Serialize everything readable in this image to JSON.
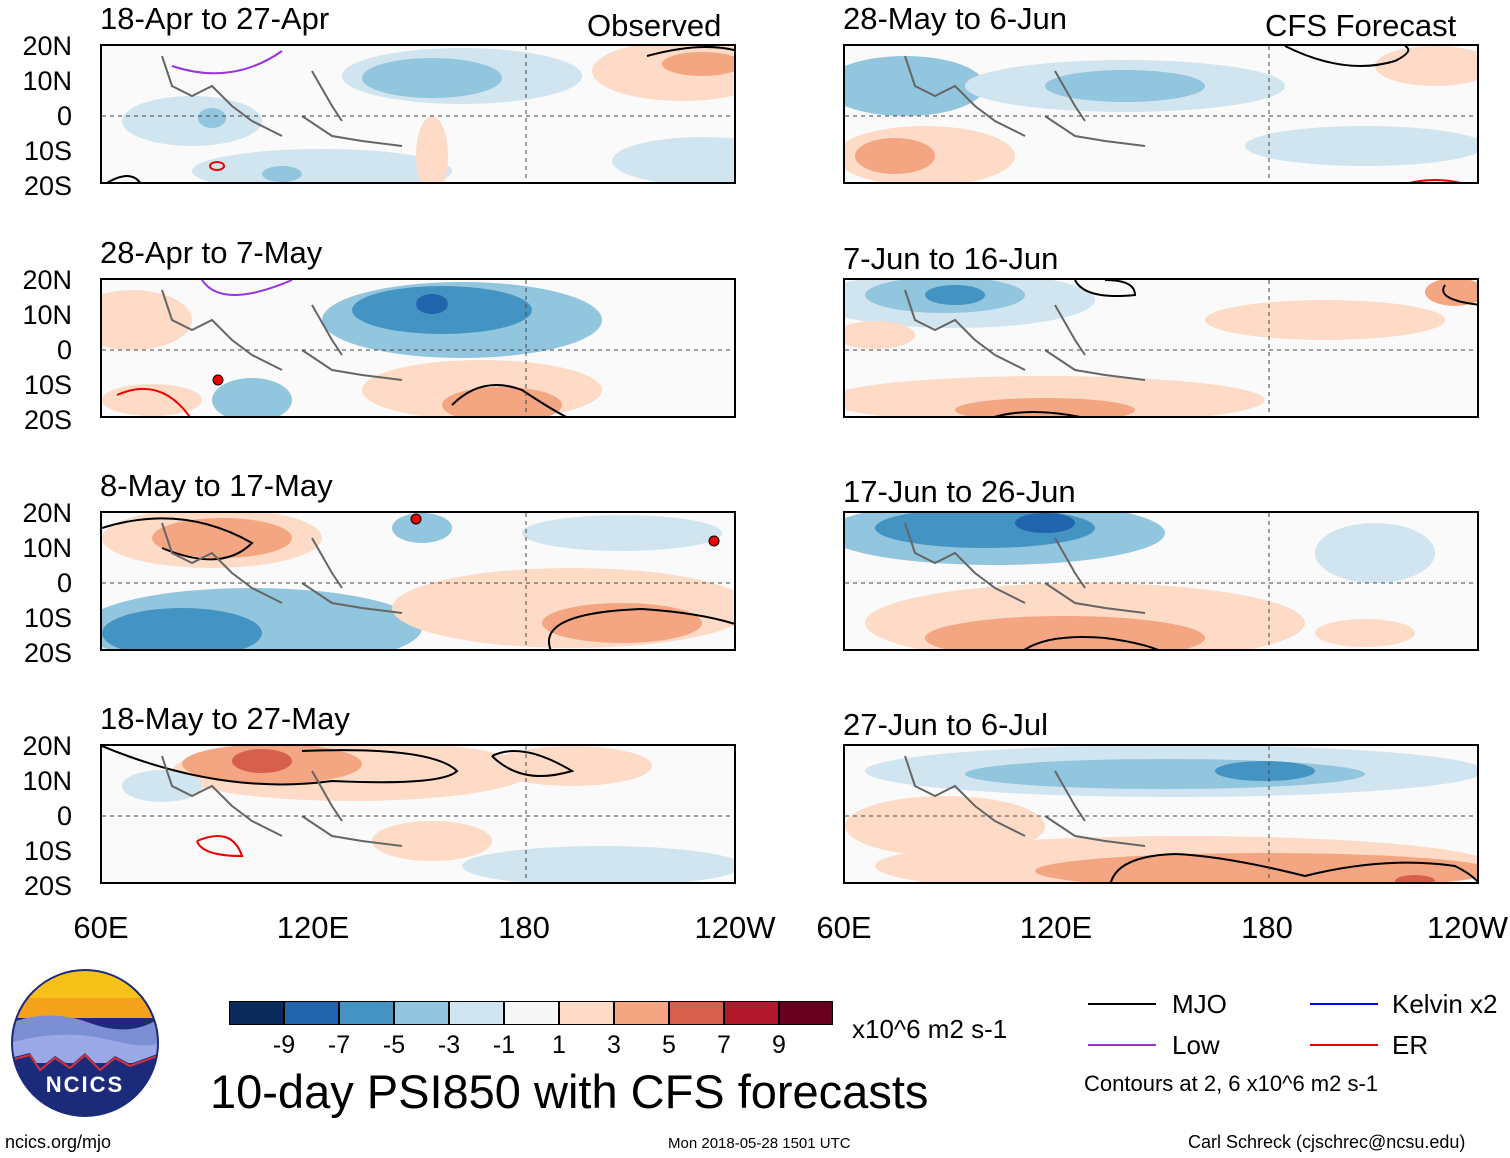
{
  "header": {
    "observed": "Observed",
    "forecast": "CFS Forecast"
  },
  "panels": {
    "observed": [
      {
        "title": "18-Apr to 27-Apr"
      },
      {
        "title": "28-Apr to 7-May"
      },
      {
        "title": "8-May to 17-May"
      },
      {
        "title": "18-May to 27-May"
      }
    ],
    "forecast": [
      {
        "title": "28-May to 6-Jun"
      },
      {
        "title": "7-Jun to 16-Jun"
      },
      {
        "title": "17-Jun to 26-Jun"
      },
      {
        "title": "27-Jun to 6-Jul"
      }
    ]
  },
  "axes": {
    "lat_labels": [
      "20N",
      "10N",
      "0",
      "10S",
      "20S"
    ],
    "lon_labels": [
      "60E",
      "120E",
      "180",
      "120W"
    ]
  },
  "colorbar": {
    "ticks": [
      "-9",
      "-7",
      "-5",
      "-3",
      "-1",
      "1",
      "3",
      "5",
      "7",
      "9"
    ],
    "colors": [
      "#0b2a5c",
      "#2166ac",
      "#4393c3",
      "#92c5de",
      "#d1e5f0",
      "#f7f7f7",
      "#fddbc7",
      "#f4a582",
      "#d6604d",
      "#b2182b",
      "#67001f"
    ],
    "units": "x10^6 m2 s-1"
  },
  "legend": {
    "items": [
      {
        "label": "MJO",
        "color": "#000000"
      },
      {
        "label": "Kelvin x2",
        "color": "#0000ff"
      },
      {
        "label": "Low",
        "color": "#9933dd"
      },
      {
        "label": "ER",
        "color": "#ee0000"
      }
    ],
    "contours_note": "Contours at 2, 6 x10^6 m2 s-1"
  },
  "logo": {
    "text": "NCICS"
  },
  "main_title": "10-day PSI850 with CFS forecasts",
  "footer": {
    "url": "ncics.org/mjo",
    "timestamp": "Mon 2018-05-28 1501 UTC",
    "credit": "Carl Schreck (cjschrec@ncsu.edu)"
  }
}
